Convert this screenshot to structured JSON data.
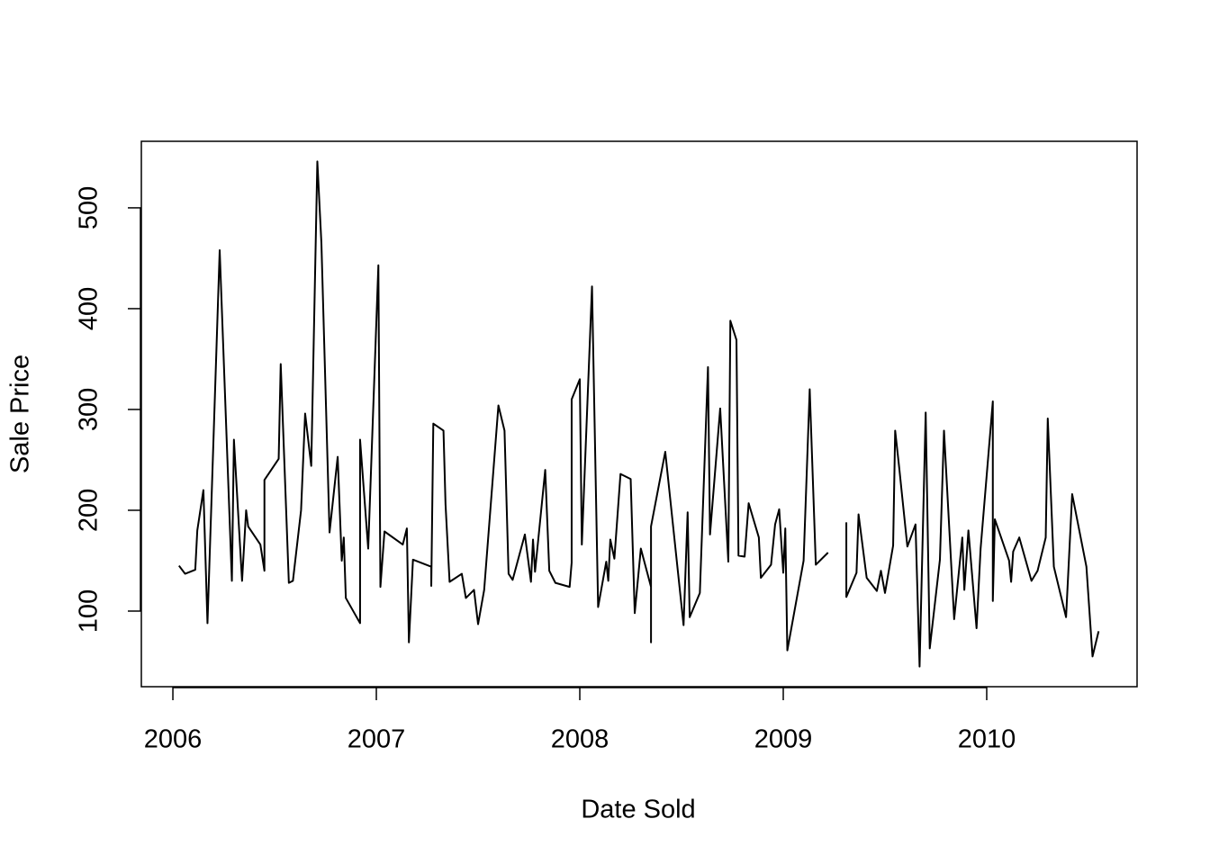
{
  "chart_data": {
    "type": "line",
    "x_label": "Date Sold",
    "y_label": "Sale Price",
    "color": "#000000",
    "x": [
      2006.03,
      2006.06,
      2006.11,
      2006.12,
      2006.15,
      2006.17,
      2006.23,
      2006.29,
      2006.3,
      2006.34,
      2006.36,
      2006.37,
      2006.43,
      2006.45,
      2006.45,
      2006.52,
      2006.53,
      2006.57,
      2006.59,
      2006.63,
      2006.65,
      2006.68,
      2006.71,
      2006.73,
      2006.77,
      2006.81,
      2006.83,
      2006.84,
      2006.85,
      2006.92,
      2006.92,
      2006.96,
      2007.01,
      2007.02,
      2007.04,
      2007.13,
      2007.15,
      2007.16,
      2007.18,
      2007.27,
      2007.27,
      2007.28,
      2007.33,
      2007.34,
      2007.36,
      2007.42,
      2007.44,
      2007.48,
      2007.5,
      2007.53,
      2007.6,
      2007.63,
      2007.65,
      2007.67,
      2007.73,
      2007.76,
      2007.77,
      2007.78,
      2007.83,
      2007.85,
      2007.88,
      2007.95,
      2007.96,
      2007.96,
      2008.0,
      2008.01,
      2008.06,
      2008.09,
      2008.13,
      2008.14,
      2008.15,
      2008.17,
      2008.2,
      2008.25,
      2008.27,
      2008.3,
      2008.35,
      2008.35,
      2008.35,
      2008.42,
      2008.51,
      2008.53,
      2008.54,
      2008.59,
      2008.63,
      2008.64,
      2008.69,
      2008.73,
      2008.74,
      2008.77,
      2008.78,
      2008.81,
      2008.83,
      2008.88,
      2008.89,
      2008.94,
      2008.96,
      2008.98,
      2009.0,
      2009.01,
      2009.02,
      2009.1,
      2009.13,
      2009.16,
      2009.22,
      2009.27,
      2009.31,
      2009.31,
      2009.36,
      2009.37,
      2009.41,
      2009.46,
      2009.48,
      2009.5,
      2009.54,
      2009.55,
      2009.57,
      2009.61,
      2009.65,
      2009.67,
      2009.7,
      2009.72,
      2009.77,
      2009.79,
      2009.84,
      2009.88,
      2009.89,
      2009.91,
      2009.95,
      2009.97,
      2010.03,
      2010.03,
      2010.04,
      2010.11,
      2010.12,
      2010.13,
      2010.16,
      2010.22,
      2010.25,
      2010.29,
      2010.3,
      2010.33,
      2010.39,
      2010.42,
      2010.49,
      2010.52,
      2010.55
    ],
    "values": [
      145,
      137,
      141,
      180,
      220,
      88,
      458,
      130,
      270,
      130,
      200,
      184,
      166,
      140,
      230,
      251,
      345,
      128,
      130,
      200,
      296,
      244,
      546,
      465,
      178,
      253,
      150,
      173,
      113,
      88,
      270,
      162,
      443,
      124,
      179,
      166,
      182,
      69,
      151,
      144,
      125,
      286,
      279,
      206,
      129,
      137,
      113,
      121,
      87,
      121,
      304,
      279,
      137,
      131,
      176,
      129,
      171,
      139,
      240,
      140,
      128,
      124,
      148,
      310,
      330,
      166,
      422,
      104,
      149,
      130,
      171,
      152,
      236,
      231,
      98,
      162,
      124,
      69,
      184,
      258,
      86,
      198,
      94,
      118,
      342,
      176,
      301,
      149,
      388,
      369,
      155,
      154,
      207,
      173,
      133,
      146,
      186,
      201,
      138,
      182,
      61,
      150,
      320,
      146,
      158,
      null,
      188,
      114,
      138,
      196,
      133,
      120,
      140,
      118,
      165,
      279,
      242,
      164,
      186,
      45,
      297,
      63,
      151,
      279,
      92,
      173,
      121,
      180,
      83,
      162,
      308,
      110,
      191,
      150,
      129,
      159,
      173,
      130,
      140,
      173,
      291,
      144,
      94,
      216,
      144,
      55,
      80
    ],
    "xlim": [
      2005.845,
      2010.739
    ],
    "ylim": [
      25,
      566
    ],
    "xticks": [
      2006,
      2007,
      2008,
      2009,
      2010
    ],
    "yticks": [
      100,
      200,
      300,
      400,
      500
    ]
  }
}
